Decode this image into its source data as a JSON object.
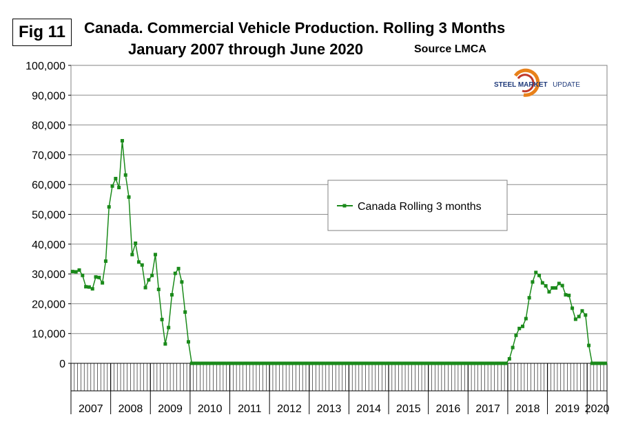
{
  "figure_label": "Fig 11",
  "title_line1": "Canada. Commercial Vehicle Production. Rolling 3 Months",
  "title_line2": "January 2007 through June 2020",
  "source": "Source LMCA",
  "brand": {
    "bold": "STEEL MARKET",
    "light": "UPDATE"
  },
  "colors": {
    "series": "#1a8a1a",
    "grid": "#8c8c8c",
    "background": "#ffffff"
  },
  "chart_data": {
    "type": "line",
    "title": "Canada. Commercial Vehicle Production. Rolling 3 Months January 2007 through June 2020",
    "xlabel": "",
    "ylabel": "",
    "ylim": [
      0,
      100000
    ],
    "yticks": [
      0,
      10000,
      20000,
      30000,
      40000,
      50000,
      60000,
      70000,
      80000,
      90000,
      100000
    ],
    "ytick_labels": [
      "0",
      "10,000",
      "20,000",
      "30,000",
      "40,000",
      "50,000",
      "60,000",
      "70,000",
      "80,000",
      "90,000",
      "100,000"
    ],
    "year_labels": [
      "2007",
      "2008",
      "2009",
      "2010",
      "2011",
      "2012",
      "2013",
      "2014",
      "2015",
      "2016",
      "2017",
      "2018",
      "2019",
      "2020"
    ],
    "x_period_count": 162,
    "legend": {
      "label": "Canada Rolling 3 months",
      "placement": "center-right"
    },
    "series": [
      {
        "name": "Canada Rolling 3 months",
        "start": "2007-01",
        "values": [
          30800,
          30700,
          31300,
          29500,
          25700,
          25600,
          25000,
          29000,
          28800,
          27000,
          34300,
          52500,
          59500,
          62000,
          59000,
          74700,
          63200,
          55800,
          36500,
          40300,
          34000,
          33000,
          25400,
          28000,
          29500,
          36500,
          24800,
          14700,
          6500,
          12000,
          23000,
          30200,
          31800,
          27300,
          17200,
          7200,
          0,
          0,
          0,
          0,
          0,
          0,
          0,
          0,
          0,
          0,
          0,
          0,
          0,
          0,
          0,
          0,
          0,
          0,
          0,
          0,
          0,
          0,
          0,
          0,
          0,
          0,
          0,
          0,
          0,
          0,
          0,
          0,
          0,
          0,
          0,
          0,
          0,
          0,
          0,
          0,
          0,
          0,
          0,
          0,
          0,
          0,
          0,
          0,
          0,
          0,
          0,
          0,
          0,
          0,
          0,
          0,
          0,
          0,
          0,
          0,
          0,
          0,
          0,
          0,
          0,
          0,
          0,
          0,
          0,
          0,
          0,
          0,
          0,
          0,
          0,
          0,
          0,
          0,
          0,
          0,
          0,
          0,
          0,
          0,
          0,
          0,
          0,
          0,
          0,
          0,
          0,
          0,
          0,
          0,
          0,
          0,
          1500,
          5300,
          9400,
          11700,
          12400,
          15000,
          22000,
          27300,
          30500,
          29500,
          27000,
          26000,
          24000,
          25300,
          25300,
          26800,
          26100,
          23000,
          22800,
          18500,
          14800,
          15700,
          17600,
          16200,
          6000,
          0,
          0,
          0,
          0,
          0
        ]
      }
    ]
  }
}
